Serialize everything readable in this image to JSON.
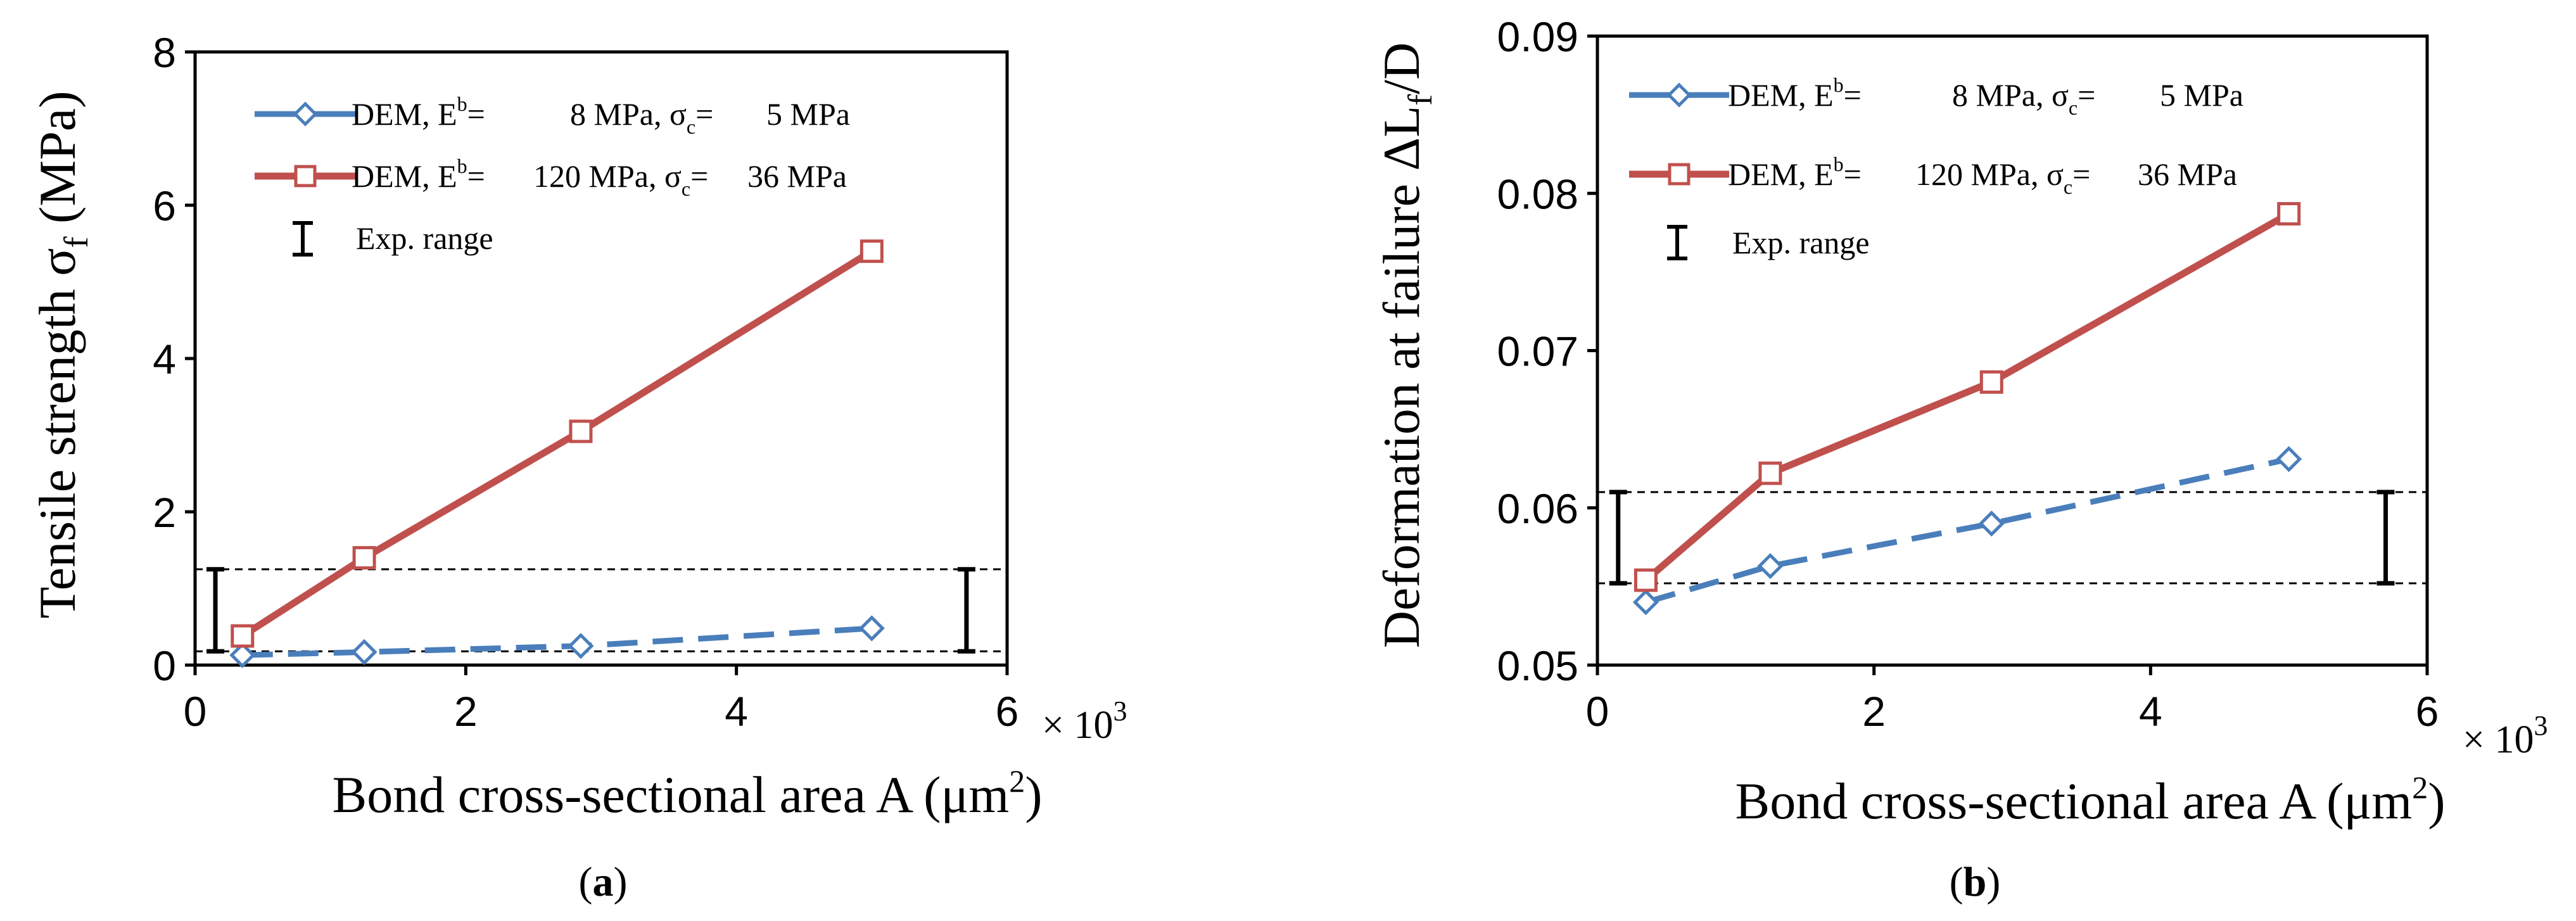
{
  "chart_data": [
    {
      "type": "line",
      "panel_label_open": "(",
      "panel_label": "a",
      "panel_label_close": ")",
      "xlabel_main": "Bond cross-sectional area  A  (μm",
      "xlabel_sup": "2",
      "xlabel_close": ")",
      "x_multiplier_prefix": "× 10",
      "x_multiplier_exp": "3",
      "ylabel_main": "Tensile strength  σ",
      "ylabel_sub": "f",
      "ylabel_unit": " (MPa)",
      "xlim": [
        0,
        6
      ],
      "ylim": [
        0,
        8
      ],
      "x_ticks": [
        "0",
        "2",
        "4",
        "6"
      ],
      "y_ticks": [
        "0",
        "2",
        "4",
        "6",
        "8"
      ],
      "series": [
        {
          "name": "DEM, E^b = 8 MPa, σc = 5 MPa",
          "color": "#4a7ebb",
          "marker": "diamond",
          "dash": "dashed",
          "x": [
            0.35,
            1.25,
            2.85,
            5.0
          ],
          "values": [
            0.13,
            0.17,
            0.25,
            0.48
          ]
        },
        {
          "name": "DEM, E^b = 120 MPa, σc = 36 MPa",
          "color": "#c0504d",
          "marker": "square",
          "dash": "solid",
          "x": [
            0.35,
            1.25,
            2.85,
            5.0
          ],
          "values": [
            0.38,
            1.4,
            3.05,
            5.4
          ]
        }
      ],
      "exp_range": {
        "low": 0.18,
        "high": 1.25,
        "bar_x": [
          0.15,
          5.7
        ]
      },
      "legend": [
        {
          "a": "DEM, E",
          "sup": "b",
          "b": "=",
          "c": "8 MPa, σ",
          "sub": "c",
          "d": "=",
          "e": "5 MPa"
        },
        {
          "a": "DEM, E",
          "sup": "b",
          "b": "=",
          "c": "120 MPa, σ",
          "sub": "c",
          "d": "=",
          "e": "36 MPa"
        },
        {
          "a": "Exp. range"
        }
      ]
    },
    {
      "type": "line",
      "panel_label_open": "(",
      "panel_label": "b",
      "panel_label_close": ")",
      "xlabel_main": "Bond cross-sectional area  A  (μm",
      "xlabel_sup": "2",
      "xlabel_close": ")",
      "x_multiplier_prefix": "× 10",
      "x_multiplier_exp": "3",
      "ylabel_main": "Deformation at failure  ΔL",
      "ylabel_sub": "f",
      "ylabel_unit": "/D",
      "xlim": [
        0,
        6
      ],
      "ylim": [
        0.05,
        0.09
      ],
      "x_ticks": [
        "0",
        "2",
        "4",
        "6"
      ],
      "y_ticks": [
        "0.05",
        "0.06",
        "0.07",
        "0.08",
        "0.09"
      ],
      "series": [
        {
          "name": "DEM, E^b = 8 MPa, σc = 5 MPa",
          "color": "#4a7ebb",
          "marker": "diamond",
          "dash": "dashed",
          "x": [
            0.35,
            1.25,
            2.85,
            5.0
          ],
          "values": [
            0.054,
            0.0563,
            0.059,
            0.0631
          ]
        },
        {
          "name": "DEM, E^b = 120 MPa, σc = 36 MPa",
          "color": "#c0504d",
          "marker": "square",
          "dash": "solid",
          "x": [
            0.35,
            1.25,
            2.85,
            5.0
          ],
          "values": [
            0.0554,
            0.0622,
            0.068,
            0.0787
          ]
        }
      ],
      "exp_range": {
        "low": 0.0552,
        "high": 0.061,
        "bar_x": [
          0.15,
          5.7
        ]
      },
      "legend": [
        {
          "a": "DEM, E",
          "sup": "b",
          "b": "=",
          "c": "8 MPa, σ",
          "sub": "c",
          "d": "=",
          "e": "5 MPa"
        },
        {
          "a": "DEM, E",
          "sup": "b",
          "b": "=",
          "c": "120 MPa, σ",
          "sub": "c",
          "d": "=",
          "e": "36 MPa"
        },
        {
          "a": "Exp. range"
        }
      ]
    }
  ]
}
